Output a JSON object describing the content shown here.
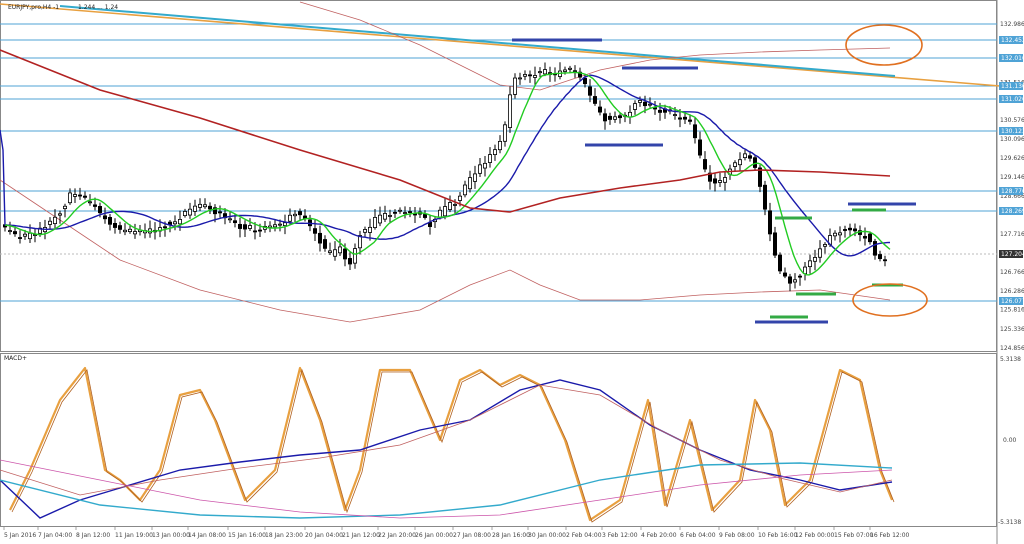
{
  "chart_title": "EURJPY,pro,H4 -1",
  "chart_subtitle": "1.244 ... 1.24",
  "indicator_label": "MACD+",
  "price_axis": {
    "ticks": [
      132.986,
      131.516,
      130.576,
      130.096,
      129.626,
      129.146,
      128.666,
      127.716,
      126.766,
      126.286,
      125.816,
      125.336,
      124.856
    ],
    "marked": [
      {
        "value": "132.452",
        "y": 40
      },
      {
        "value": "132.016",
        "y": 58
      },
      {
        "value": "131.130",
        "y": 86
      },
      {
        "value": "131.026",
        "y": 99
      },
      {
        "value": "130.123",
        "y": 131
      },
      {
        "value": "128.776",
        "y": 191
      },
      {
        "value": "128.269",
        "y": 211
      },
      {
        "value": "127.204",
        "y": 254
      },
      {
        "value": "126.077",
        "y": 301
      }
    ],
    "current": "127.204"
  },
  "macd_axis": {
    "top": "5.3138",
    "mid": "0.00",
    "bottom": "-5.3138"
  },
  "time_axis": [
    "5 Jan 2016",
    "7 Jan 04:00",
    "8 Jan 12:00",
    "11 Jan 19:00",
    "13 Jan 00:00",
    "14 Jan 08:00",
    "15 Jan 16:00",
    "18 Jan 23:00",
    "20 Jan 04:00",
    "21 Jan 12:00",
    "22 Jan 20:00",
    "26 Jan 00:00",
    "27 Jan 08:00",
    "28 Jan 16:00",
    "30 Jan 00:00",
    "2 Feb 04:00",
    "3 Feb 12:00",
    "4 Feb 20:00",
    "6 Feb 04:00",
    "9 Feb 08:00",
    "10 Feb 16:00",
    "12 Feb 00:00",
    "15 Feb 07:00",
    "16 Feb 12:00"
  ],
  "colors": {
    "candle": "#000000",
    "ema_fast": "#22cc22",
    "ema_slow": "#1a1aaa",
    "sma_long": "#b22222",
    "bands": "#c06060",
    "trend_cyan": "#33aacc",
    "trend_orange": "#e8a040",
    "hline": "#4fa3d6",
    "macd_main": "#e8a040",
    "macd_signal": "#1a1aaa",
    "marker_blue": "#3344aa",
    "marker_green": "#33aa44",
    "circle": "#e07020"
  }
}
